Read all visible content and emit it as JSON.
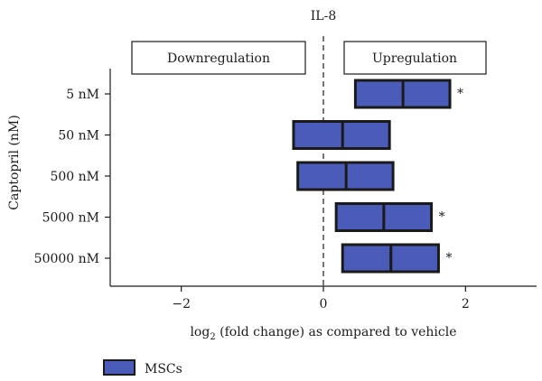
{
  "chart_data": {
    "type": "bar",
    "subtype": "floating-box",
    "title": "IL-8",
    "xlabel_prefix": "log",
    "xlabel_sub": "2",
    "xlabel_rest": " (fold change) as compared to vehicle",
    "ylabel": "Captopril (nM)",
    "xlim": [
      -3,
      3
    ],
    "xticks": [
      -2,
      0,
      2
    ],
    "xtick_labels": [
      "−2",
      "0",
      "2"
    ],
    "categories": [
      "5 nM",
      "50 nM",
      "500 nM",
      "5000 nM",
      "50000 nM"
    ],
    "series": [
      {
        "name": "MSCs",
        "color": "#4a5cb8",
        "low": [
          0.45,
          -0.42,
          -0.36,
          0.18,
          0.27
        ],
        "mid": [
          1.12,
          0.27,
          0.32,
          0.85,
          0.95
        ],
        "high": [
          1.78,
          0.93,
          0.98,
          1.52,
          1.62
        ],
        "significance": [
          "*",
          "",
          "",
          "*",
          "*"
        ]
      }
    ],
    "reference_line": {
      "x": 0,
      "style": "dashed"
    },
    "annotations": {
      "left": "Downregulation",
      "right": "Upregulation"
    },
    "legend_position": "bottom-left",
    "grid": false
  }
}
